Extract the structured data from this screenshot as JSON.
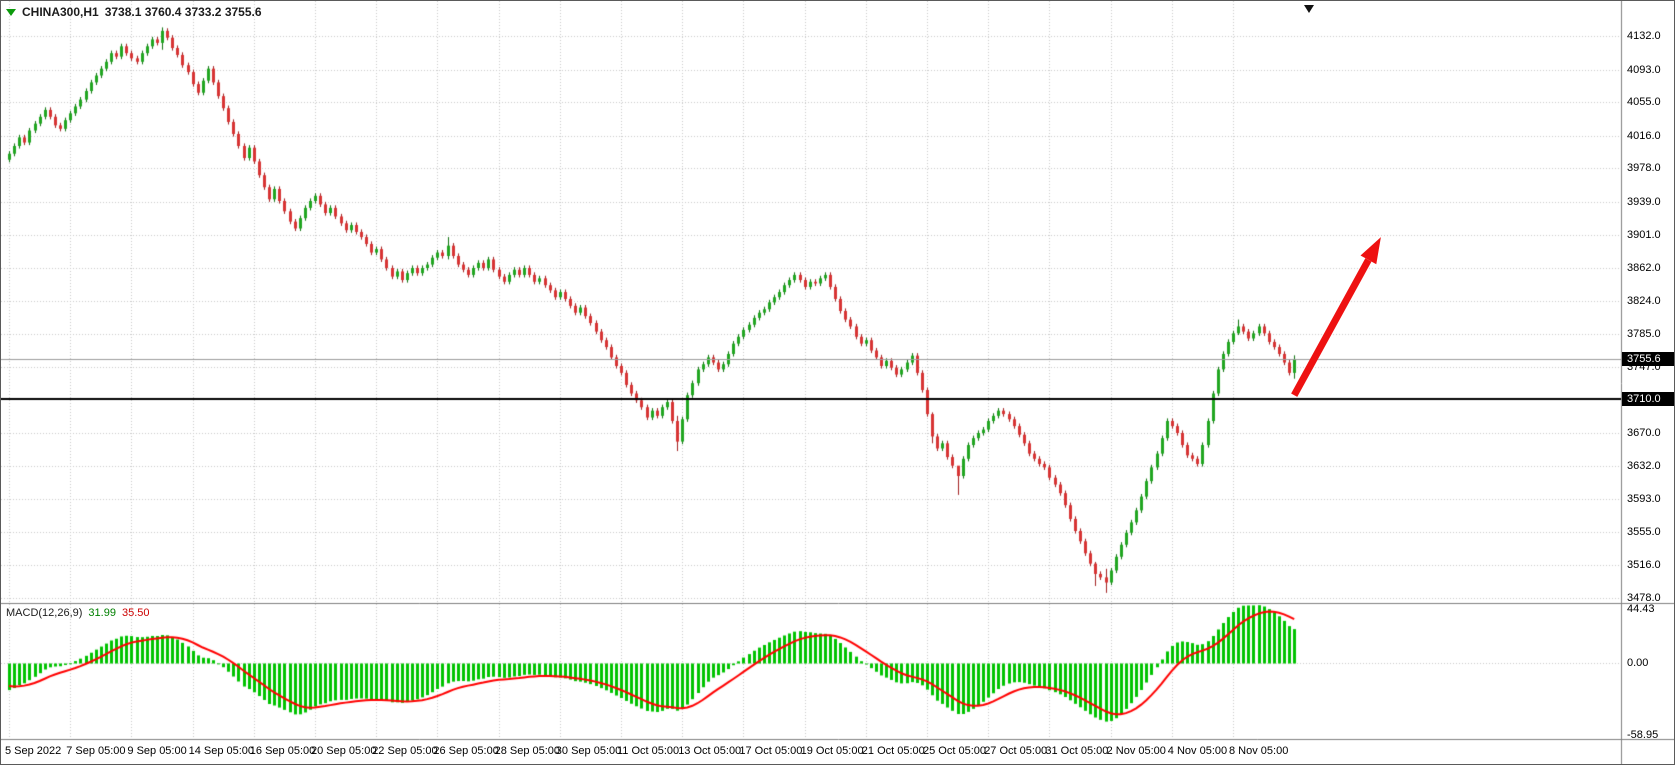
{
  "header": {
    "symbol_timeframe": "CHINA300,H1",
    "ohlc": "3738.1 3760.4 3733.2 3755.6"
  },
  "macd_panel": {
    "label": "MACD(12,26,9)",
    "macd_value": "31.99",
    "signal_value": "35.50"
  },
  "annotations": {
    "bid": {
      "price": 3755.6,
      "label": "3755.6"
    },
    "horizontal_line": {
      "price": 3710.0,
      "label": "3710.0"
    },
    "arrow": {
      "from": {
        "candle": 252,
        "price": 3714
      },
      "to": {
        "candle": 269,
        "price": 3898
      }
    }
  },
  "colors": {
    "background": "#FFFFFF",
    "grid": "#C9C9C9",
    "candle_up": "#21A621",
    "candle_down": "#D83434",
    "wick_up": "#117511",
    "wick_down": "#A32222",
    "macd_histogram": "#00C300",
    "macd_signal": "#FF0000",
    "bid_line": "#9C9C9C",
    "hline": "#000000",
    "arrow": "#EE1111",
    "separator": "#7F7F7F",
    "badge_bg": "#000000",
    "badge_text": "#FFFFFF"
  },
  "chart_data": {
    "type": "candlestick",
    "title": "CHINA300 H1 candlestick chart with MACD(12,26,9) sub-panel",
    "symbol": "CHINA300",
    "timeframe": "H1",
    "price_range": [
      3478,
      4132
    ],
    "y_ticks": [
      "4132.0",
      "4093.0",
      "4055.0",
      "4016.0",
      "3978.0",
      "3939.0",
      "3901.0",
      "3862.0",
      "3824.0",
      "3785.0",
      "3747.0",
      "3709.0",
      "3670.0",
      "3632.0",
      "3593.0",
      "3555.0",
      "3516.0",
      "3478.0"
    ],
    "x_ticks": [
      "5 Sep 2022",
      "7 Sep 05:00",
      "9 Sep 05:00",
      "14 Sep 05:00",
      "16 Sep 05:00",
      "20 Sep 05:00",
      "22 Sep 05:00",
      "26 Sep 05:00",
      "28 Sep 05:00",
      "30 Sep 05:00",
      "11 Oct 05:00",
      "13 Oct 05:00",
      "17 Oct 05:00",
      "19 Oct 05:00",
      "21 Oct 05:00",
      "25 Oct 05:00",
      "27 Oct 05:00",
      "31 Oct 05:00",
      "2 Nov 05:00",
      "4 Nov 05:00",
      "8 Nov 05:00"
    ],
    "candles_per_x_tick": 12,
    "macd": {
      "params": "12,26,9",
      "fast": 12,
      "slow": 26,
      "signal_period": 9,
      "range": [
        -58.95,
        44.43
      ],
      "axis_ticks": [
        "44.43",
        "0.00",
        "-58.95"
      ],
      "last_macd": 31.99,
      "last_signal": 35.5,
      "ema_fast_seed": 4005,
      "ema_slow_seed": 4028,
      "signal_seed": -18
    },
    "candles": {
      "first_open": 3988,
      "default_wick": 3,
      "closes": [
        3995,
        4004,
        4014,
        4008,
        4022,
        4030,
        4038,
        4046,
        4038,
        4028,
        4024,
        4034,
        4042,
        4050,
        4058,
        4068,
        4078,
        4086,
        4094,
        4102,
        4112,
        4108,
        4120,
        4112,
        4106,
        4102,
        4112,
        4120,
        4128,
        4124,
        4138,
        4130,
        4118,
        4110,
        4098,
        4090,
        4076,
        4066,
        4080,
        4094,
        4078,
        4062,
        4048,
        4032,
        4018,
        4004,
        3990,
        4002,
        3986,
        3970,
        3956,
        3942,
        3954,
        3940,
        3928,
        3916,
        3908,
        3920,
        3932,
        3940,
        3946,
        3936,
        3926,
        3932,
        3922,
        3914,
        3906,
        3912,
        3904,
        3898,
        3890,
        3880,
        3884,
        3872,
        3862,
        3852,
        3858,
        3848,
        3856,
        3862,
        3856,
        3862,
        3866,
        3874,
        3880,
        3876,
        3888,
        3876,
        3866,
        3860,
        3854,
        3862,
        3868,
        3862,
        3872,
        3860,
        3852,
        3846,
        3854,
        3860,
        3854,
        3862,
        3854,
        3846,
        3850,
        3842,
        3836,
        3828,
        3834,
        3826,
        3818,
        3810,
        3816,
        3806,
        3798,
        3788,
        3778,
        3770,
        3758,
        3748,
        3740,
        3726,
        3716,
        3708,
        3700,
        3688,
        3696,
        3690,
        3700,
        3706,
        3684,
        3660,
        3686,
        3714,
        3728,
        3744,
        3750,
        3758,
        3752,
        3744,
        3750,
        3762,
        3774,
        3782,
        3790,
        3796,
        3804,
        3810,
        3814,
        3822,
        3828,
        3834,
        3842,
        3848,
        3854,
        3848,
        3840,
        3846,
        3844,
        3850,
        3854,
        3840,
        3826,
        3812,
        3802,
        3794,
        3782,
        3774,
        3778,
        3766,
        3758,
        3748,
        3754,
        3746,
        3738,
        3744,
        3752,
        3760,
        3740,
        3720,
        3692,
        3666,
        3652,
        3658,
        3642,
        3632,
        3620,
        3640,
        3656,
        3664,
        3670,
        3674,
        3684,
        3690,
        3696,
        3692,
        3686,
        3678,
        3668,
        3658,
        3646,
        3640,
        3634,
        3630,
        3618,
        3610,
        3600,
        3586,
        3570,
        3556,
        3544,
        3530,
        3518,
        3506,
        3502,
        3496,
        3510,
        3526,
        3540,
        3554,
        3566,
        3580,
        3596,
        3614,
        3630,
        3646,
        3664,
        3684,
        3678,
        3670,
        3656,
        3644,
        3640,
        3634,
        3656,
        3684,
        3716,
        3744,
        3762,
        3776,
        3786,
        3794,
        3788,
        3780,
        3786,
        3794,
        3786,
        3776,
        3770,
        3762,
        3752,
        3740,
        3755.6
      ],
      "spikes": {
        "30": [
          4142,
          4116
        ],
        "86": [
          3898,
          3872
        ],
        "131": [
          3690,
          3649
        ],
        "181": [
          3694,
          3658
        ],
        "186": [
          3630,
          3598
        ],
        "213": [
          3520,
          3492
        ],
        "215": [
          3512,
          3484
        ],
        "241": [
          3802,
          3784
        ],
        "252": [
          3760.4,
          3733.2
        ]
      }
    }
  }
}
